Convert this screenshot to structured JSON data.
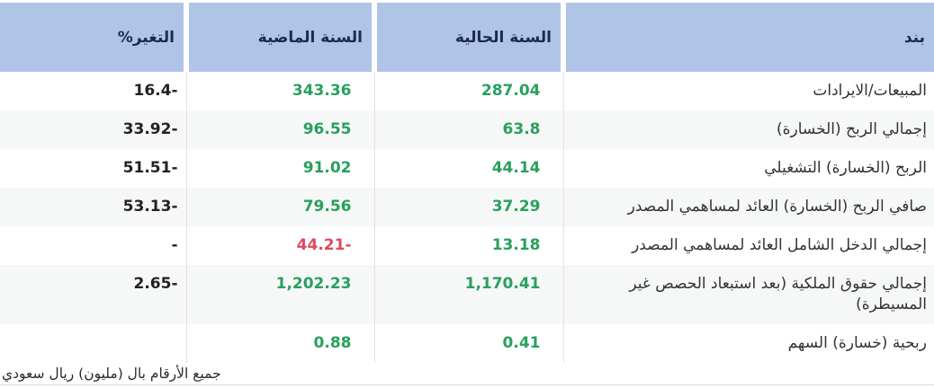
{
  "colors": {
    "header_bg": "#b0c4e8",
    "header_text": "#1c2b4a",
    "row_alt_bg": "#f6f7f7",
    "label_text": "#333333",
    "value_text": "#222222",
    "positive": "#28a05e",
    "negative": "#dc4b5c",
    "divider": "#e2e2e2",
    "bottom_rule": "#d8d8d8"
  },
  "table": {
    "columns": [
      {
        "key": "label",
        "label": "بند"
      },
      {
        "key": "current",
        "label": "السنة الحالية"
      },
      {
        "key": "previous",
        "label": "السنة الماضية"
      },
      {
        "key": "change",
        "label": "التغير%"
      }
    ],
    "rows": [
      {
        "label": "المبيعات/الايرادات",
        "current": {
          "text": "287.04",
          "tone": "positive"
        },
        "previous": {
          "text": "343.36",
          "tone": "positive"
        },
        "change": {
          "text": "16.4-",
          "tone": "plain"
        }
      },
      {
        "label": "إجمالي الربح (الخسارة)",
        "current": {
          "text": "63.8",
          "tone": "positive"
        },
        "previous": {
          "text": "96.55",
          "tone": "positive"
        },
        "change": {
          "text": "33.92-",
          "tone": "plain"
        }
      },
      {
        "label": "الربح (الخسارة) التشغيلي",
        "current": {
          "text": "44.14",
          "tone": "positive"
        },
        "previous": {
          "text": "91.02",
          "tone": "positive"
        },
        "change": {
          "text": "51.51-",
          "tone": "plain"
        }
      },
      {
        "label": "صافي الربح (الخسارة) العائد لمساهمي المصدر",
        "current": {
          "text": "37.29",
          "tone": "positive"
        },
        "previous": {
          "text": "79.56",
          "tone": "positive"
        },
        "change": {
          "text": "53.13-",
          "tone": "plain"
        }
      },
      {
        "label": "إجمالي الدخل الشامل العائد لمساهمي المصدر",
        "current": {
          "text": "13.18",
          "tone": "positive"
        },
        "previous": {
          "text": "44.21-",
          "tone": "negative"
        },
        "change": {
          "text": "-",
          "tone": "plain"
        }
      },
      {
        "label": "إجمالي حقوق الملكية (بعد استبعاد الحصص غير المسيطرة)",
        "current": {
          "text": "1,170.41",
          "tone": "positive"
        },
        "previous": {
          "text": "1,202.23",
          "tone": "positive"
        },
        "change": {
          "text": "2.65-",
          "tone": "plain"
        }
      },
      {
        "label": "ربحية (خسارة) السهم",
        "current": {
          "text": "0.41",
          "tone": "positive"
        },
        "previous": {
          "text": "0.88",
          "tone": "positive"
        },
        "change": {
          "text": "",
          "tone": "plain"
        }
      }
    ]
  },
  "footer": {
    "note": "جميع الأرقام بال (مليون) ريال سعودي"
  }
}
